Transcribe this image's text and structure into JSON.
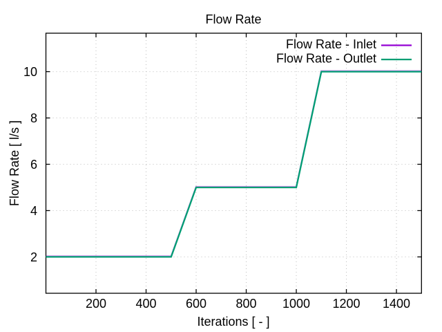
{
  "figure": {
    "background": "#ffffff"
  },
  "chart_data": {
    "type": "line",
    "title": "Flow Rate",
    "xlabel": "Iterations [ - ]",
    "ylabel": "Flow Rate [ l/s ]",
    "xlim": [
      0,
      1500
    ],
    "ylim": [
      0.43,
      11.66
    ],
    "x_ticks": [
      200,
      400,
      600,
      800,
      1000,
      1200,
      1400
    ],
    "y_ticks": [
      2,
      4,
      6,
      8,
      10
    ],
    "grid": true,
    "legend": {
      "position": "top-right-inside",
      "entries": [
        "Flow Rate - Inlet",
        "Flow Rate - Outlet"
      ]
    },
    "series": [
      {
        "name": "Flow Rate - Inlet",
        "color": "#9400d3",
        "x": [
          0,
          500,
          600,
          1000,
          1100,
          1500
        ],
        "y": [
          2,
          2,
          5,
          5,
          10,
          10
        ]
      },
      {
        "name": "Flow Rate - Outlet",
        "color": "#009e73",
        "x": [
          0,
          500,
          600,
          1000,
          1100,
          1500
        ],
        "y": [
          2,
          2,
          5,
          5,
          10,
          10
        ]
      }
    ],
    "axis_color": "#000000",
    "grid_color": "#bdbdbd"
  }
}
